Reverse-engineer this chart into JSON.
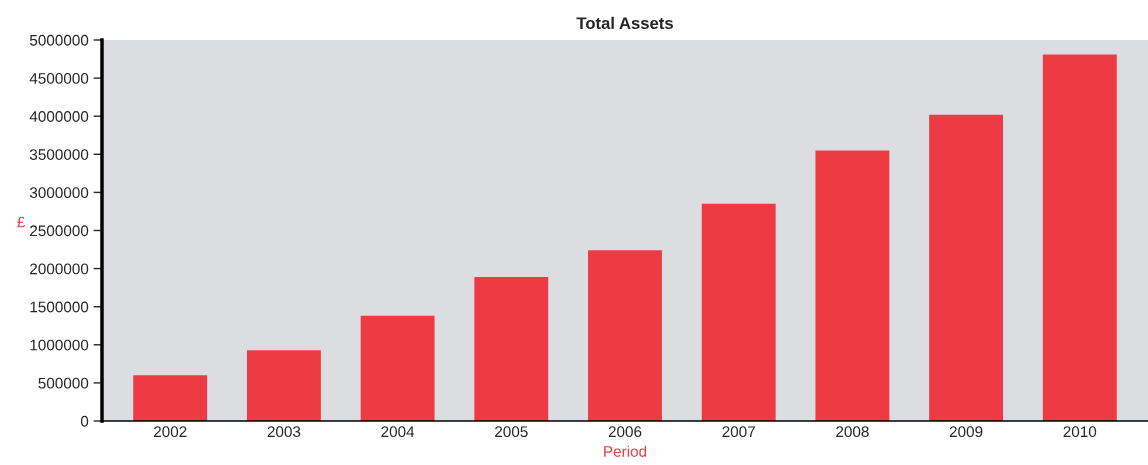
{
  "chart_data": {
    "type": "bar",
    "title": "Total Assets",
    "xlabel": "Period",
    "ylabel": "£",
    "categories": [
      "2002",
      "2003",
      "2004",
      "2005",
      "2006",
      "2007",
      "2008",
      "2009",
      "2010"
    ],
    "values": [
      600000,
      930000,
      1380000,
      1890000,
      2240000,
      2850000,
      3550000,
      4020000,
      4810000
    ],
    "color": "#ee3a43",
    "ylim": [
      0,
      5000000
    ],
    "yticks": [
      0,
      500000,
      1000000,
      1500000,
      2000000,
      2500000,
      3000000,
      3500000,
      4000000,
      4500000,
      5000000
    ],
    "grid": false
  }
}
